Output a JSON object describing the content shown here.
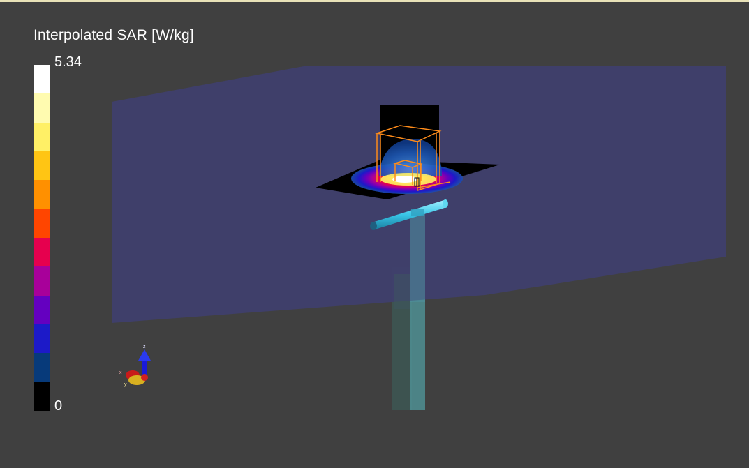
{
  "colorbar": {
    "title": "Interpolated SAR [W/kg]",
    "max_label": "5.34",
    "min_label": "0",
    "colors": [
      "#ffffff",
      "#fffbb0",
      "#fff066",
      "#ffc514",
      "#ff9000",
      "#ff4500",
      "#e6004e",
      "#a8009a",
      "#6400c0",
      "#1c1ac8",
      "#073a7a",
      "#000000"
    ]
  },
  "axis_triad": {
    "z_label": "z",
    "x_label": "x",
    "y_label": "y"
  },
  "colors": {
    "background": "#404040",
    "phantom_plane": "#3f3f6e",
    "dipole": "#38c4e6",
    "mast": "#4fa3b0",
    "sensor_box": "#ff8c1a"
  }
}
